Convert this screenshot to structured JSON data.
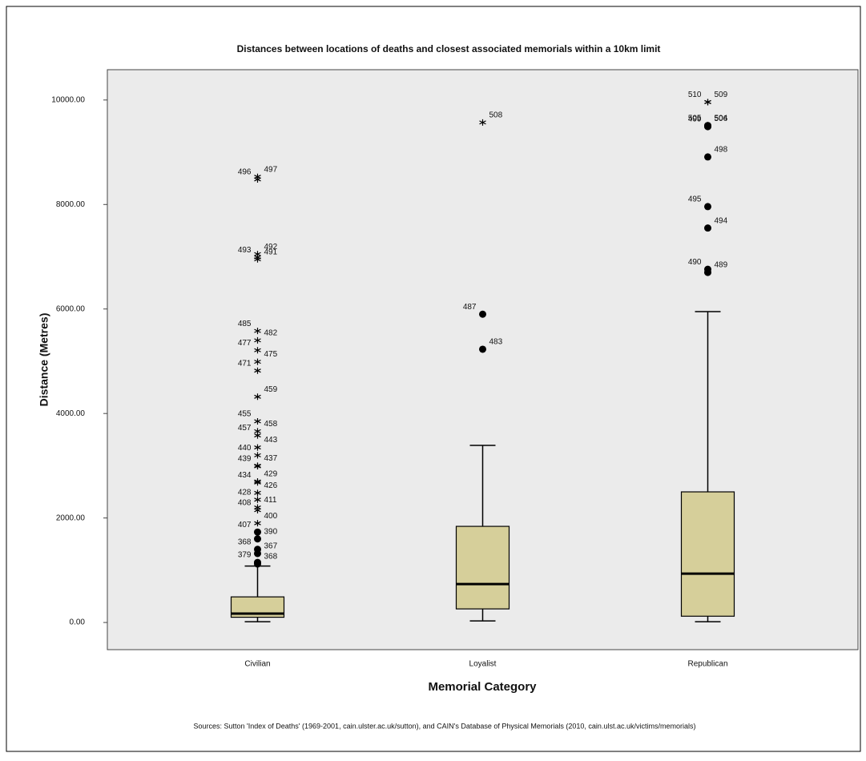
{
  "chart_data": {
    "type": "box",
    "title": "Distances between locations of deaths and closest associated memorials within a 10km limit",
    "y_label": "Distance (Metres)",
    "x_label": "Memorial Category",
    "source": "Sources:  Sutton 'Index of Deaths' (1969-2001, cain.ulster.ac.uk/sutton), and CAIN's Database of Physical Memorials (2010, cain.ulst.ac.uk/victims/memorials)",
    "color": "#d6cf9a",
    "plot_background": "#ebebeb",
    "ylim": [
      -520,
      10580
    ],
    "yticks": [
      {
        "value": 0,
        "label": "0.00"
      },
      {
        "value": 2000,
        "label": "2000.00"
      },
      {
        "value": 4000,
        "label": "4000.00"
      },
      {
        "value": 6000,
        "label": "6000.00"
      },
      {
        "value": 8000,
        "label": "8000.00"
      },
      {
        "value": 10000,
        "label": "10000.00"
      }
    ],
    "categories": [
      "Civilian",
      "Loyalist",
      "Republican"
    ],
    "boxes": [
      {
        "whisker_low": 15,
        "q1": 100,
        "median": 170,
        "q3": 490,
        "whisker_high": 1080,
        "outliers": [
          {
            "label": "497",
            "value": 8530,
            "marker": "star"
          },
          {
            "label": "496",
            "value": 8480,
            "marker": "star"
          },
          {
            "label": "492",
            "value": 7050,
            "marker": "star"
          },
          {
            "label": "493",
            "value": 6990,
            "marker": "star"
          },
          {
            "label": "491",
            "value": 6950,
            "marker": "star"
          },
          {
            "label": "485",
            "value": 5580,
            "marker": "star"
          },
          {
            "label": "482",
            "value": 5400,
            "marker": "star"
          },
          {
            "label": "477",
            "value": 5210,
            "marker": "star"
          },
          {
            "label": "475",
            "value": 4990,
            "marker": "star"
          },
          {
            "label": "471",
            "value": 4820,
            "marker": "star"
          },
          {
            "label": "459",
            "value": 4320,
            "marker": "star"
          },
          {
            "label": "455",
            "value": 3850,
            "marker": "star"
          },
          {
            "label": "458",
            "value": 3660,
            "marker": "star"
          },
          {
            "label": "457",
            "value": 3580,
            "marker": "star"
          },
          {
            "label": "443",
            "value": 3350,
            "marker": "star"
          },
          {
            "label": "440",
            "value": 3200,
            "marker": "star"
          },
          {
            "label": "437",
            "value": 3000,
            "marker": "star"
          },
          {
            "label": "439",
            "value": 2990,
            "marker": "star"
          },
          {
            "label": "429",
            "value": 2700,
            "marker": "star"
          },
          {
            "label": "434",
            "value": 2680,
            "marker": "star"
          },
          {
            "label": "426",
            "value": 2480,
            "marker": "star"
          },
          {
            "label": "428",
            "value": 2350,
            "marker": "star"
          },
          {
            "label": "411",
            "value": 2200,
            "marker": "star"
          },
          {
            "label": "408",
            "value": 2150,
            "marker": "star"
          },
          {
            "label": "400",
            "value": 1900,
            "marker": "star"
          },
          {
            "label": "407",
            "value": 1730,
            "marker": "circle"
          },
          {
            "label": "390",
            "value": 1600,
            "marker": "circle"
          },
          {
            "label": "368",
            "value": 1400,
            "marker": "circle"
          },
          {
            "label": "367",
            "value": 1320,
            "marker": "circle"
          },
          {
            "label": "379",
            "value": 1150,
            "marker": "circle"
          },
          {
            "label": "368",
            "value": 1120,
            "marker": "circle"
          }
        ]
      },
      {
        "whisker_low": 30,
        "q1": 260,
        "median": 735,
        "q3": 1840,
        "whisker_high": 3390,
        "outliers": [
          {
            "label": "508",
            "value": 9570,
            "marker": "star"
          },
          {
            "label": "487",
            "value": 5900,
            "marker": "circle"
          },
          {
            "label": "483",
            "value": 5230,
            "marker": "circle"
          }
        ]
      },
      {
        "whisker_low": 15,
        "q1": 120,
        "median": 935,
        "q3": 2500,
        "whisker_high": 5950,
        "outliers": [
          {
            "label": "509",
            "value": 9960,
            "marker": "star"
          },
          {
            "label": "510",
            "value": 9960,
            "marker": "star"
          },
          {
            "label": "504",
            "value": 9510,
            "marker": "circle"
          },
          {
            "label": "505",
            "value": 9510,
            "marker": "circle"
          },
          {
            "label": "506",
            "value": 9500,
            "marker": "circle"
          },
          {
            "label": "499",
            "value": 9490,
            "marker": "circle"
          },
          {
            "label": "498",
            "value": 8910,
            "marker": "circle"
          },
          {
            "label": "495",
            "value": 7960,
            "marker": "circle"
          },
          {
            "label": "494",
            "value": 7550,
            "marker": "circle"
          },
          {
            "label": "490",
            "value": 6760,
            "marker": "circle"
          },
          {
            "label": "489",
            "value": 6700,
            "marker": "circle"
          }
        ]
      }
    ]
  }
}
